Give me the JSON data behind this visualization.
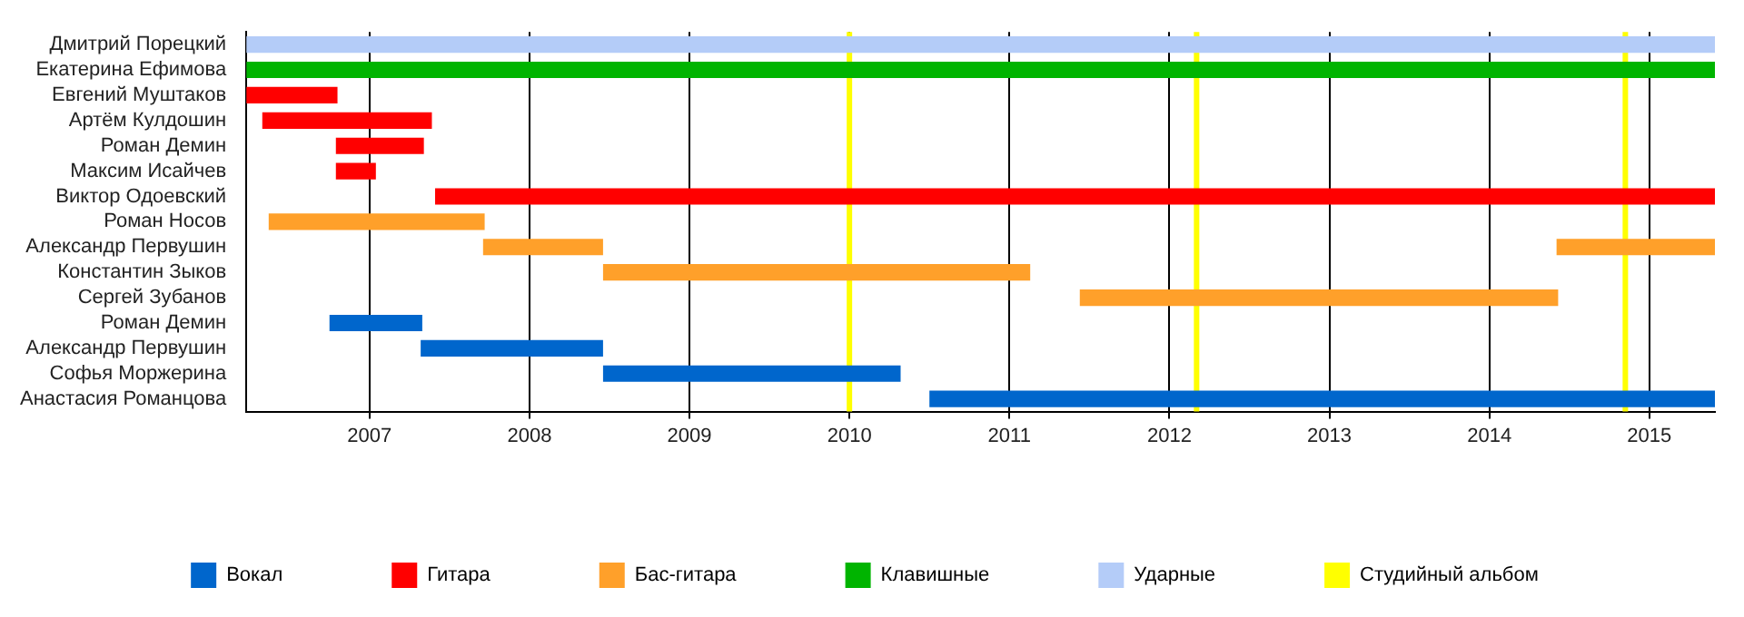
{
  "chart_data": {
    "type": "bar",
    "orientation": "horizontal",
    "categories": [
      "Дмитрий Порецкий",
      "Екатерина Ефимова",
      "Евгений Муштаков",
      "Артём Кулдошин",
      "Роман Демин",
      "Максим Исайчев",
      "Виктор Одоевский",
      "Роман Носов",
      "Александр Первушин",
      "Константин Зыков",
      "Сергей Зубанов",
      "Роман Демин",
      "Александр Первушин",
      "Софья Моржерина",
      "Анастасия Романцова"
    ],
    "series": [
      {
        "name": "Вокал",
        "color": "#0066cc",
        "base": [
          null,
          null,
          null,
          null,
          null,
          null,
          null,
          null,
          null,
          null,
          null,
          2006.75,
          2007.32,
          2008.46,
          2010.5
        ],
        "values": [
          null,
          null,
          null,
          null,
          null,
          null,
          null,
          null,
          null,
          null,
          null,
          0.58,
          1.14,
          1.86,
          4.91
        ]
      },
      {
        "name": "Гитара",
        "color": "#ff0000",
        "base": [
          null,
          null,
          2006.23,
          2006.33,
          2006.79,
          2006.79,
          2007.41,
          null,
          null,
          null,
          null,
          null,
          null,
          null,
          null
        ],
        "values": [
          null,
          null,
          0.57,
          1.06,
          0.55,
          0.25,
          8.0,
          null,
          null,
          null,
          null,
          null,
          null,
          null,
          null
        ]
      },
      {
        "name": "Бас-гитара",
        "color": "#ffa02a",
        "base": [
          null,
          null,
          null,
          null,
          null,
          null,
          null,
          2006.37,
          2007.71,
          2008.46,
          2011.44,
          null,
          null,
          null,
          null
        ],
        "values": [
          null,
          null,
          null,
          null,
          null,
          null,
          null,
          1.35,
          0.75,
          2.67,
          2.99,
          null,
          null,
          null,
          null
        ]
      },
      {
        "name": "Клавишные",
        "color": "#00b400",
        "base": [
          null,
          2006.23,
          null,
          null,
          null,
          null,
          null,
          null,
          null,
          null,
          null,
          null,
          null,
          null,
          null
        ],
        "values": [
          null,
          9.18,
          null,
          null,
          null,
          null,
          null,
          null,
          null,
          null,
          null,
          null,
          null,
          null,
          null
        ]
      },
      {
        "name": "Ударные",
        "color": "#b4ccf8",
        "base": [
          2006.23,
          null,
          null,
          null,
          null,
          null,
          null,
          null,
          null,
          null,
          null,
          null,
          null,
          null,
          null
        ],
        "values": [
          9.18,
          null,
          null,
          null,
          null,
          null,
          null,
          null,
          null,
          null,
          null,
          null,
          null,
          null,
          null
        ]
      },
      {
        "color": "#ffa02a",
        "base": [
          null,
          null,
          null,
          null,
          null,
          null,
          null,
          null,
          2014.42,
          null,
          null,
          null,
          null,
          null,
          null
        ],
        "values": [
          null,
          null,
          null,
          null,
          null,
          null,
          null,
          null,
          0.99,
          null,
          null,
          null,
          null,
          null,
          null
        ]
      }
    ],
    "xlim": [
      2006.23,
      2015.41
    ],
    "xticks": [
      2007,
      2008,
      2009,
      2010,
      2011,
      2012,
      2013,
      2014,
      2015
    ],
    "grid": "x",
    "legend": "bottom",
    "ref_lines": [
      {
        "axis": "x",
        "value": 2010.0,
        "color": "#ffff00",
        "label": "Студийный альбом"
      },
      {
        "axis": "x",
        "value": 2012.17,
        "color": "#ffff00"
      },
      {
        "axis": "x",
        "value": 2014.85,
        "color": "#ffff00"
      }
    ]
  }
}
